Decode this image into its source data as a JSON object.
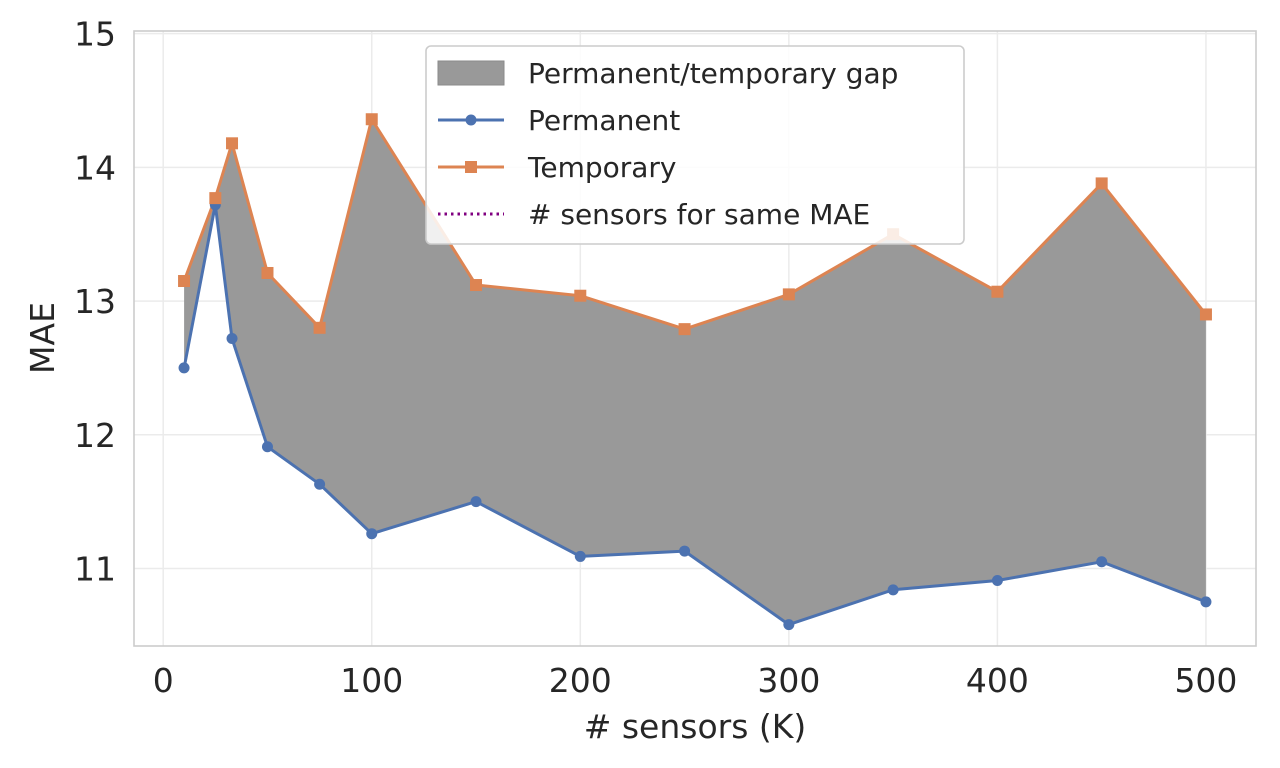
{
  "chart_data": {
    "type": "line",
    "xlabel": "# sensors (K)",
    "ylabel": "MAE",
    "xlim": [
      -14,
      524
    ],
    "ylim": [
      10.42,
      15.02
    ],
    "xticks": [
      0,
      100,
      200,
      300,
      400,
      500
    ],
    "yticks": [
      11,
      12,
      13,
      14,
      15
    ],
    "grid": true,
    "legend_position": "top-center",
    "x": [
      10,
      25,
      33,
      50,
      75,
      100,
      150,
      200,
      250,
      300,
      350,
      400,
      450,
      500
    ],
    "series": [
      {
        "name": "Permanent",
        "color": "#4c72b0",
        "marker": "circle",
        "values": [
          12.5,
          13.72,
          12.72,
          11.91,
          11.63,
          11.26,
          11.5,
          11.09,
          11.13,
          10.58,
          10.84,
          10.91,
          11.05,
          10.75
        ]
      },
      {
        "name": "Temporary",
        "color": "#dd8452",
        "marker": "square",
        "values": [
          13.15,
          13.77,
          14.18,
          13.21,
          12.8,
          14.36,
          13.12,
          13.04,
          12.79,
          13.05,
          13.5,
          13.07,
          13.88,
          12.9
        ]
      }
    ],
    "fill_between": {
      "name": "Permanent/temporary gap",
      "color": "#999999"
    },
    "legend_extra": {
      "name": "# sensors for same MAE",
      "color": "#800080",
      "style": "dotted"
    }
  }
}
